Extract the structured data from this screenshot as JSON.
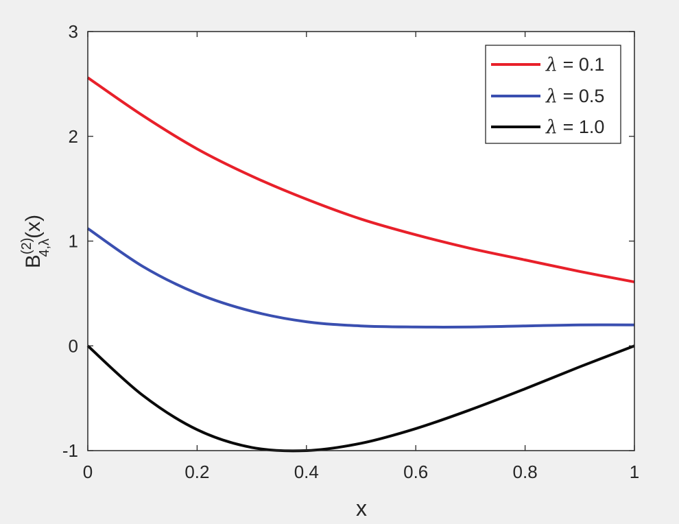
{
  "chart_data": {
    "type": "line",
    "title": "",
    "xlabel": "x",
    "ylabel": {
      "base": "B",
      "superscript": "(2)",
      "subscript": "4,λ",
      "suffix": "(x)"
    },
    "xlim": [
      0,
      1
    ],
    "ylim": [
      -1,
      3
    ],
    "xticks": [
      "0",
      "0.2",
      "0.4",
      "0.6",
      "0.8",
      "1"
    ],
    "yticks": [
      "-1",
      "0",
      "1",
      "2",
      "3"
    ],
    "grid": false,
    "legend_position": "top-right",
    "series": [
      {
        "name": "λ = 0.1",
        "symbol": "λ",
        "value_text": " = 0.1",
        "color": "#e8202a",
        "x": [
          0,
          0.1,
          0.2,
          0.3,
          0.4,
          0.5,
          0.6,
          0.7,
          0.8,
          0.9,
          1.0
        ],
        "y": [
          2.56,
          2.2,
          1.88,
          1.62,
          1.4,
          1.21,
          1.06,
          0.93,
          0.82,
          0.71,
          0.61
        ]
      },
      {
        "name": "λ = 0.5",
        "symbol": "λ",
        "value_text": " = 0.5",
        "color": "#3a4fb0",
        "x": [
          0,
          0.1,
          0.2,
          0.3,
          0.4,
          0.5,
          0.6,
          0.7,
          0.8,
          0.9,
          1.0
        ],
        "y": [
          1.12,
          0.76,
          0.5,
          0.33,
          0.23,
          0.19,
          0.18,
          0.18,
          0.19,
          0.2,
          0.2
        ]
      },
      {
        "name": "λ = 1.0",
        "symbol": "λ",
        "value_text": " = 1.0",
        "color": "#0a0a0a",
        "x": [
          0,
          0.1,
          0.2,
          0.3,
          0.4,
          0.5,
          0.6,
          0.7,
          0.8,
          0.9,
          1.0
        ],
        "y": [
          0,
          -0.47,
          -0.8,
          -0.97,
          -1.0,
          -0.93,
          -0.79,
          -0.61,
          -0.41,
          -0.2,
          0
        ]
      }
    ]
  }
}
